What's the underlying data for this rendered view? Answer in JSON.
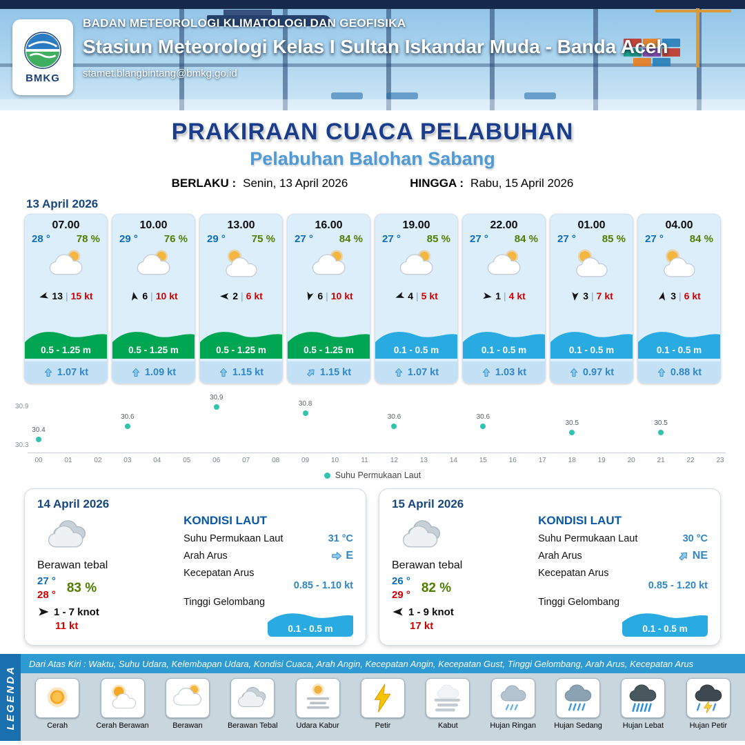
{
  "header": {
    "agency": "BADAN METEOROLOGI KLIMATOLOGI DAN GEOFISIKA",
    "station": "Stasiun Meteorologi Kelas I Sultan Iskandar Muda - Banda Aceh",
    "email": "stamet.blangbintang@bmkg.go.id",
    "logo_text": "BMKG"
  },
  "title": {
    "main": "PRAKIRAAN CUACA PELABUHAN",
    "sub": "Pelabuhan Balohan Sabang",
    "berlaku_label": "BERLAKU :",
    "berlaku_value": "Senin, 13 April 2026",
    "hingga_label": "HINGGA :",
    "hingga_value": "Rabu, 15 April 2026"
  },
  "forecast": {
    "date": "13 April 2026",
    "cards": [
      {
        "time": "07.00",
        "temp": "28 °",
        "humidity": "78 %",
        "icon": "cloudy",
        "wind_dir_deg": 255,
        "wind": "13",
        "gust": "15 kt",
        "wave": "0.5 - 1.25 m",
        "wave_color": "green",
        "current_dir_deg": 0,
        "current": "1.07 kt"
      },
      {
        "time": "10.00",
        "temp": "29 °",
        "humidity": "76 %",
        "icon": "cloudy",
        "wind_dir_deg": 350,
        "wind": "6",
        "gust": "10 kt",
        "wave": "0.5 - 1.25 m",
        "wave_color": "green",
        "current_dir_deg": 0,
        "current": "1.09 kt"
      },
      {
        "time": "13.00",
        "temp": "29 °",
        "humidity": "75 %",
        "icon": "cloud-sun",
        "wind_dir_deg": 270,
        "wind": "2",
        "gust": "6 kt",
        "wave": "0.5 - 1.25 m",
        "wave_color": "green",
        "current_dir_deg": 0,
        "current": "1.15 kt"
      },
      {
        "time": "16.00",
        "temp": "27 °",
        "humidity": "84 %",
        "icon": "cloudy",
        "wind_dir_deg": 195,
        "wind": "6",
        "gust": "10 kt",
        "wave": "0.5 - 1.25 m",
        "wave_color": "green",
        "current_dir_deg": 45,
        "current": "1.15 kt"
      },
      {
        "time": "19.00",
        "temp": "27 °",
        "humidity": "85 %",
        "icon": "cloudy",
        "wind_dir_deg": 250,
        "wind": "4",
        "gust": "5 kt",
        "wave": "0.1 - 0.5 m",
        "wave_color": "blue",
        "current_dir_deg": 0,
        "current": "1.07 kt"
      },
      {
        "time": "22.00",
        "temp": "27 °",
        "humidity": "84 %",
        "icon": "cloudy",
        "wind_dir_deg": 100,
        "wind": "1",
        "gust": "4 kt",
        "wave": "0.1 - 0.5 m",
        "wave_color": "blue",
        "current_dir_deg": 0,
        "current": "1.03 kt"
      },
      {
        "time": "01.00",
        "temp": "27 °",
        "humidity": "85 %",
        "icon": "cloud-sun",
        "wind_dir_deg": 185,
        "wind": "3",
        "gust": "7 kt",
        "wave": "0.1 - 0.5 m",
        "wave_color": "blue",
        "current_dir_deg": 0,
        "current": "0.97 kt"
      },
      {
        "time": "04.00",
        "temp": "27 °",
        "humidity": "84 %",
        "icon": "cloud-sun",
        "wind_dir_deg": 10,
        "wind": "3",
        "gust": "6 kt",
        "wave": "0.1 - 0.5 m",
        "wave_color": "blue",
        "current_dir_deg": 0,
        "current": "0.88 kt"
      }
    ]
  },
  "chart_data": {
    "type": "scatter",
    "series": [
      {
        "name": "Suhu Permukaan Laut",
        "x": [
          0,
          3,
          6,
          9,
          12,
          15,
          18,
          21
        ],
        "values": [
          30.4,
          30.6,
          30.9,
          30.8,
          30.6,
          30.6,
          30.5,
          30.5
        ]
      }
    ],
    "x_ticks": [
      "00",
      "01",
      "02",
      "03",
      "04",
      "05",
      "06",
      "07",
      "08",
      "09",
      "10",
      "11",
      "12",
      "13",
      "14",
      "15",
      "16",
      "17",
      "18",
      "19",
      "20",
      "21",
      "22",
      "23"
    ],
    "ylim": [
      30.3,
      30.9
    ],
    "y_labels": [
      "30.9",
      "30.3"
    ],
    "legend": "Suhu Permukaan Laut",
    "legend_position": "bottom-center",
    "grid": false,
    "dot_color": "#2fc4ad"
  },
  "days": [
    {
      "date": "14 April 2026",
      "icon": "cloud-thick",
      "condition": "Berawan tebal",
      "temp_min": "27 °",
      "temp_max": "28 °",
      "humidity": "83 %",
      "wind_dir_deg": 90,
      "wind": "1  - 7 knot",
      "gust": "11 kt",
      "sea": {
        "title": "KONDISI LAUT",
        "sst_label": "Suhu Permukaan Laut",
        "sst": "31 °C",
        "dir_label": "Arah Arus",
        "dir_text": "E",
        "dir_deg": 90,
        "speed_label": "Kecepatan Arus",
        "speed": "0.85  - 1.10 kt",
        "wave_label": "Tinggi Gelombang",
        "wave": "0.1 - 0.5 m"
      }
    },
    {
      "date": "15 April 2026",
      "icon": "cloud-thick",
      "condition": "Berawan tebal",
      "temp_min": "26 °",
      "temp_max": "29 °",
      "humidity": "82 %",
      "wind_dir_deg": 270,
      "wind": "1  - 9 knot",
      "gust": "17 kt",
      "sea": {
        "title": "KONDISI LAUT",
        "sst_label": "Suhu Permukaan Laut",
        "sst": "30 °C",
        "dir_label": "Arah Arus",
        "dir_text": "NE",
        "dir_deg": 45,
        "speed_label": "Kecepatan Arus",
        "speed": "0.85  - 1.20 kt",
        "wave_label": "Tinggi Gelombang",
        "wave": "0.1 - 0.5 m"
      }
    }
  ],
  "legend": {
    "title": "LEGENDA",
    "bar_text": "Dari Atas Kiri : Waktu, Suhu Udara, Kelembapan Udara, Kondisi Cuaca, Arah Angin, Kecepatan Angin, Kecepatan Gust, Tinggi Gelombang, Arah Arus, Kecepatan Arus",
    "items": [
      {
        "label": "Cerah",
        "icon": "sun"
      },
      {
        "label": "Cerah Berawan",
        "icon": "sun-cloud"
      },
      {
        "label": "Berawan",
        "icon": "cloudy"
      },
      {
        "label": "Berawan Tebal",
        "icon": "cloud-thick"
      },
      {
        "label": "Udara Kabur",
        "icon": "haze"
      },
      {
        "label": "Petir",
        "icon": "lightning"
      },
      {
        "label": "Kabut",
        "icon": "fog"
      },
      {
        "label": "Hujan Ringan",
        "icon": "rain-light"
      },
      {
        "label": "Hujan Sedang",
        "icon": "rain-medium"
      },
      {
        "label": "Hujan Lebat",
        "icon": "rain-heavy"
      },
      {
        "label": "Hujan Petir",
        "icon": "rain-lightning"
      }
    ]
  },
  "colors": {
    "wave_green": "#00a651",
    "wave_blue": "#29abe2",
    "temp_blue": "#0a6ebd",
    "humidity_green": "#4e7d00",
    "gust_red": "#d00000",
    "title_blue": "#1a3e8c",
    "subtitle_blue": "#4f9bd8",
    "sea_blue": "#0a58a8",
    "dot_teal": "#2fc4ad"
  }
}
